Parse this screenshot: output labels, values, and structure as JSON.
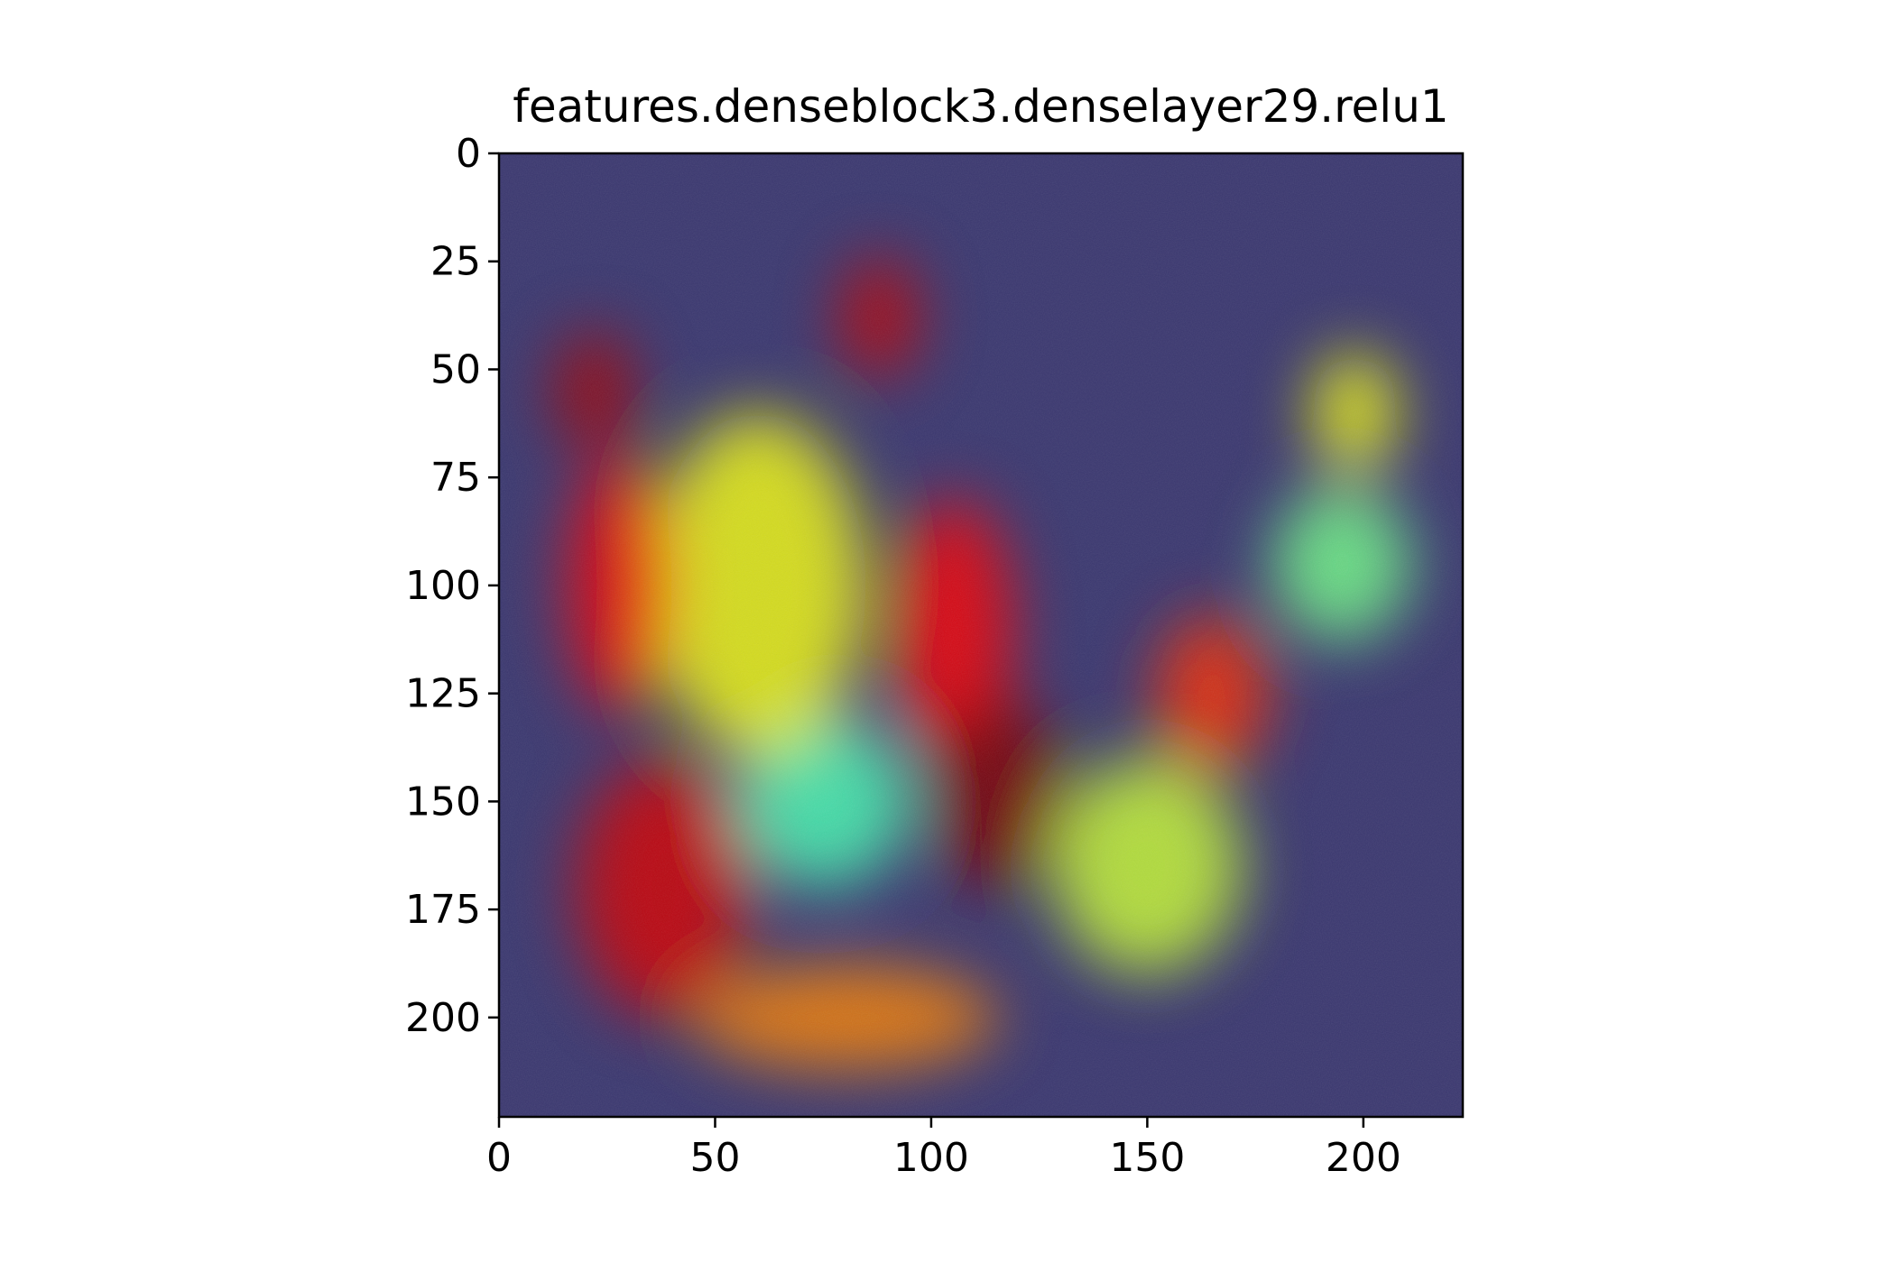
{
  "chart_data": {
    "type": "heatmap",
    "title": "features.denseblock3.denselayer29.relu1",
    "xlabel": "",
    "ylabel": "",
    "xlim": [
      0,
      223
    ],
    "ylim": [
      223,
      0
    ],
    "x_ticks": [
      0,
      50,
      100,
      150,
      200
    ],
    "y_ticks": [
      0,
      25,
      50,
      75,
      100,
      125,
      150,
      175,
      200
    ],
    "grid": false,
    "colormap": "jet",
    "background_color": "#3b3870",
    "activation_regions": [
      {
        "cx": 22,
        "cy": 55,
        "rx": 9,
        "ry": 14,
        "level": 0.95
      },
      {
        "cx": 88,
        "cy": 38,
        "rx": 9,
        "ry": 14,
        "level": 0.92
      },
      {
        "cx": 28,
        "cy": 100,
        "rx": 12,
        "ry": 30,
        "level": 0.85
      },
      {
        "cx": 105,
        "cy": 110,
        "rx": 14,
        "ry": 30,
        "level": 0.85
      },
      {
        "cx": 115,
        "cy": 148,
        "rx": 16,
        "ry": 22,
        "level": 1.0
      },
      {
        "cx": 38,
        "cy": 170,
        "rx": 20,
        "ry": 30,
        "level": 0.9
      },
      {
        "cx": 165,
        "cy": 125,
        "rx": 13,
        "ry": 18,
        "level": 0.8
      },
      {
        "cx": 80,
        "cy": 200,
        "rx": 35,
        "ry": 12,
        "level": 0.7
      },
      {
        "cx": 60,
        "cy": 100,
        "rx": 25,
        "ry": 40,
        "level": 0.55
      },
      {
        "cx": 150,
        "cy": 165,
        "rx": 22,
        "ry": 25,
        "level": 0.5
      },
      {
        "cx": 198,
        "cy": 60,
        "rx": 10,
        "ry": 14,
        "level": 0.55
      },
      {
        "cx": 195,
        "cy": 95,
        "rx": 16,
        "ry": 18,
        "level": 0.4
      },
      {
        "cx": 75,
        "cy": 150,
        "rx": 20,
        "ry": 20,
        "level": 0.35
      }
    ]
  }
}
